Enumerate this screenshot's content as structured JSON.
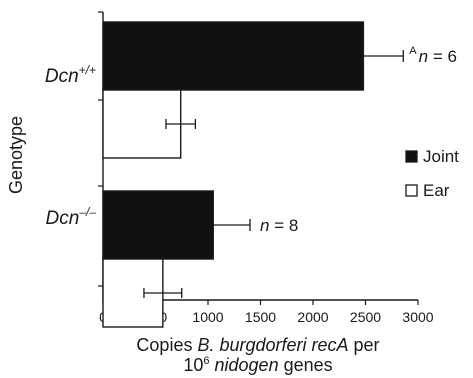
{
  "chart_data": {
    "type": "bar",
    "orientation": "horizontal",
    "ylabel": "Genotype",
    "xlabel_lines": [
      {
        "parts": [
          {
            "text": "Copies ",
            "italic": false
          },
          {
            "text": "B. burgdorferi recA",
            "italic": true
          },
          {
            "text": " per",
            "italic": false
          }
        ]
      },
      {
        "parts": [
          {
            "text": "10",
            "italic": false
          },
          {
            "text": "6",
            "italic": false,
            "sup": true
          },
          {
            "text": " ",
            "italic": false
          },
          {
            "text": "nidogen",
            "italic": true
          },
          {
            "text": " genes",
            "italic": false
          }
        ]
      }
    ],
    "xlim": [
      0,
      3000
    ],
    "xticks": [
      0,
      500,
      1000,
      1500,
      2000,
      2500,
      3000
    ],
    "xtick_labels": [
      "0",
      "500",
      "1000",
      "1500",
      "2000",
      "2500",
      "3000"
    ],
    "categories": [
      {
        "base": "Dcn",
        "sup": "+/+"
      },
      {
        "base": "Dcn",
        "sup": "–/–"
      }
    ],
    "series": [
      {
        "name": "Joint",
        "fill": "#111111",
        "values": [
          2480,
          1050
        ],
        "errors": [
          380,
          350
        ]
      },
      {
        "name": "Ear",
        "fill": "#ffffff",
        "values": [
          740,
          570
        ],
        "errors": [
          140,
          180
        ]
      }
    ],
    "annotations": [
      {
        "category_index": 0,
        "marker": "A",
        "text": "n = 6"
      },
      {
        "category_index": 1,
        "marker": "",
        "text": "n = 8"
      }
    ],
    "legend": {
      "position": "right",
      "entries": [
        "Joint",
        "Ear"
      ]
    },
    "grid": false,
    "colors": {
      "ink": "#1a1a1a",
      "joint": "#111111",
      "ear": "#ffffff"
    }
  }
}
